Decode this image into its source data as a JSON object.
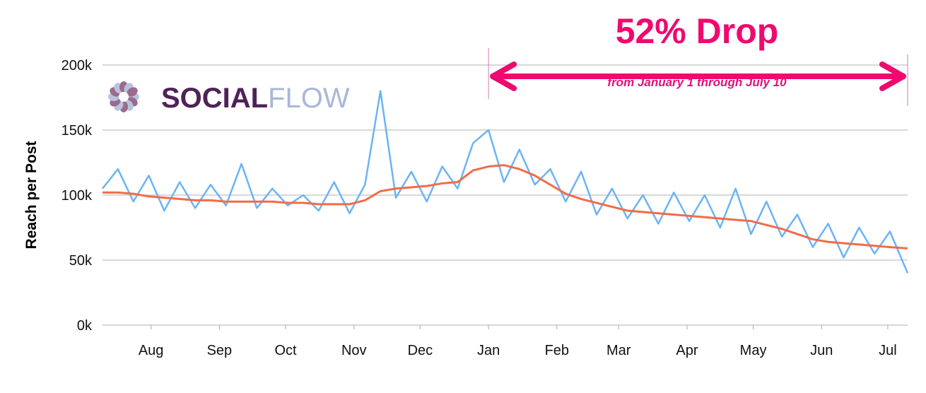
{
  "chart_data": {
    "type": "line",
    "title": "52% Drop",
    "subtitle": "from January 1 through July 10",
    "xlabel": "",
    "ylabel": "Reach per Post",
    "ylim": [
      0,
      200000
    ],
    "yticks": [
      "0k",
      "50k",
      "100k",
      "150k",
      "200k"
    ],
    "xticks": [
      {
        "label": "Aug",
        "date": "2017-08-01"
      },
      {
        "label": "Sep",
        "date": "2017-09-01"
      },
      {
        "label": "Oct",
        "date": "2017-10-01"
      },
      {
        "label": "Nov",
        "date": "2017-11-01"
      },
      {
        "label": "Dec",
        "date": "2017-12-01"
      },
      {
        "label": "Jan",
        "date": "2018-01-01"
      },
      {
        "label": "Feb",
        "date": "2018-02-01"
      },
      {
        "label": "Mar",
        "date": "2018-03-01"
      },
      {
        "label": "Apr",
        "date": "2018-04-01"
      },
      {
        "label": "May",
        "date": "2018-05-01"
      },
      {
        "label": "Jun",
        "date": "2018-06-01"
      },
      {
        "label": "Jul",
        "date": "2018-07-01"
      }
    ],
    "xlim": [
      "2017-07-10",
      "2018-07-10"
    ],
    "grid": true,
    "annotation": {
      "from": "2018-01-01",
      "to": "2018-07-10",
      "text": "52% Drop"
    },
    "colors": {
      "raw": "#6bb4f5",
      "trend": "#f26b4a",
      "annotation": "#ee0a6e",
      "grid": "#cccccc"
    },
    "x": [
      "2017-07-10",
      "2017-07-17",
      "2017-07-24",
      "2017-07-31",
      "2017-08-07",
      "2017-08-14",
      "2017-08-21",
      "2017-08-28",
      "2017-09-04",
      "2017-09-11",
      "2017-09-18",
      "2017-09-25",
      "2017-10-02",
      "2017-10-09",
      "2017-10-16",
      "2017-10-23",
      "2017-10-30",
      "2017-11-06",
      "2017-11-13",
      "2017-11-20",
      "2017-11-27",
      "2017-12-04",
      "2017-12-11",
      "2017-12-18",
      "2017-12-25",
      "2018-01-01",
      "2018-01-08",
      "2018-01-15",
      "2018-01-22",
      "2018-01-29",
      "2018-02-05",
      "2018-02-12",
      "2018-02-19",
      "2018-02-26",
      "2018-03-05",
      "2018-03-12",
      "2018-03-19",
      "2018-03-26",
      "2018-04-02",
      "2018-04-09",
      "2018-04-16",
      "2018-04-23",
      "2018-04-30",
      "2018-05-07",
      "2018-05-14",
      "2018-05-21",
      "2018-05-28",
      "2018-06-04",
      "2018-06-11",
      "2018-06-18",
      "2018-06-25",
      "2018-07-02",
      "2018-07-10"
    ],
    "series": [
      {
        "values": [
          105000,
          120000,
          95000,
          115000,
          88000,
          110000,
          90000,
          108000,
          92000,
          124000,
          90000,
          105000,
          92000,
          100000,
          88000,
          110000,
          86000,
          108000,
          180000,
          98000,
          118000,
          95000,
          122000,
          105000,
          140000,
          150000,
          110000,
          135000,
          108000,
          120000,
          95000,
          118000,
          85000,
          105000,
          82000,
          100000,
          78000,
          102000,
          80000,
          100000,
          75000,
          105000,
          70000,
          95000,
          68000,
          85000,
          60000,
          78000,
          52000,
          75000,
          55000,
          72000,
          40000
        ]
      },
      {
        "values": [
          102000,
          102000,
          101000,
          99000,
          98000,
          97000,
          96000,
          96000,
          95000,
          95000,
          95000,
          95000,
          94000,
          94000,
          93000,
          93000,
          93000,
          96000,
          103000,
          105000,
          106000,
          107000,
          109000,
          110000,
          119000,
          122000,
          123000,
          120000,
          115000,
          108000,
          101000,
          97000,
          94000,
          91000,
          88000,
          87000,
          86000,
          85000,
          84000,
          83000,
          82000,
          81000,
          80000,
          77000,
          74000,
          70000,
          66000,
          64000,
          63000,
          62000,
          61000,
          60000,
          59000
        ]
      }
    ]
  },
  "logo": {
    "text_dark": "SOCIAL",
    "text_light": "FLOW"
  }
}
